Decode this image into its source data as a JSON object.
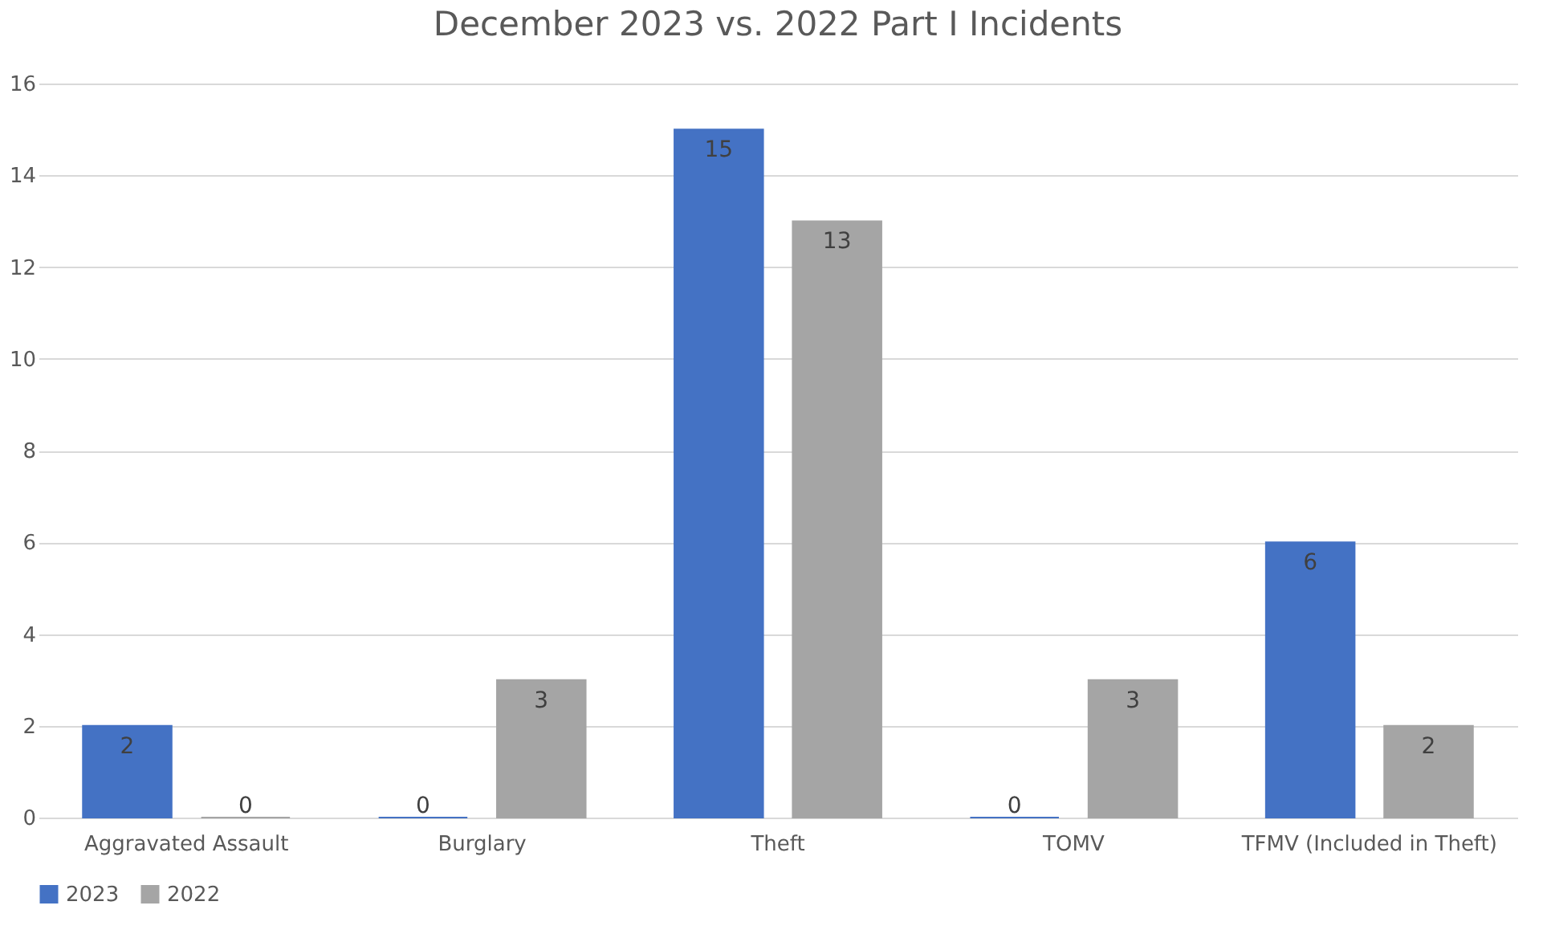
{
  "chart_data": {
    "type": "bar",
    "title": "December 2023 vs. 2022 Part I Incidents",
    "categories": [
      "Aggravated Assault",
      "Burglary",
      "Theft",
      "TOMV",
      "TFMV (Included in Theft)"
    ],
    "series": [
      {
        "name": "2023",
        "color": "#4472c4",
        "values": [
          2,
          0,
          15,
          0,
          6
        ]
      },
      {
        "name": "2022",
        "color": "#a5a5a5",
        "values": [
          0,
          3,
          13,
          3,
          2
        ]
      }
    ],
    "ylim": [
      0,
      16
    ],
    "yticks": [
      0,
      2,
      4,
      6,
      8,
      10,
      12,
      14,
      16
    ],
    "grid": "y",
    "legend": "bottom",
    "data_labels": true
  }
}
